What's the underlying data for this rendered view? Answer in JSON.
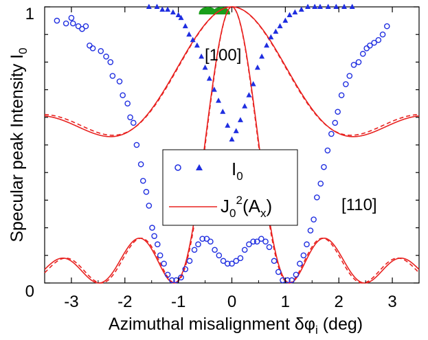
{
  "chart_data": {
    "type": "scatter",
    "xlabel_parts": {
      "main": "Azimuthal misalignment δφ",
      "sub": "i",
      "tail": " (deg)"
    },
    "ylabel_parts": {
      "main": "Specular peak Intensity I",
      "sub": "0"
    },
    "xlim": [
      -3.5,
      3.5
    ],
    "ylim": [
      0,
      1
    ],
    "x_ticks": [
      -3,
      -2,
      -1,
      0,
      1,
      2,
      3
    ],
    "x_tick_labels": [
      "-3",
      "-2",
      "-1",
      "0",
      "1",
      "2",
      "3"
    ],
    "y_tick_labels": {
      "bottom": "0",
      "top": "1"
    },
    "grid": false,
    "annotations": {
      "a100": "[100]",
      "a110": "[110]"
    },
    "legend": {
      "placement": "center",
      "markers_label": {
        "main": "I",
        "sub": "0"
      },
      "line_label": {
        "main": "J",
        "sub1": "0",
        "sup": "2",
        "mid": "(A",
        "sub2": "x",
        "tail": ")"
      }
    },
    "colors": {
      "markers": "#1f2ee0",
      "line": "#e8211f",
      "green_blob": "#1a9e1a"
    },
    "series_110_circles": [
      [
        -3.27,
        0.95
      ],
      [
        -3.1,
        0.94
      ],
      [
        -3.0,
        0.96
      ],
      [
        -2.97,
        0.94
      ],
      [
        -2.87,
        0.93
      ],
      [
        -2.8,
        0.92
      ],
      [
        -2.73,
        0.93
      ],
      [
        -2.66,
        0.86
      ],
      [
        -2.6,
        0.85
      ],
      [
        -2.45,
        0.84
      ],
      [
        -2.35,
        0.82
      ],
      [
        -2.27,
        0.8
      ],
      [
        -2.23,
        0.75
      ],
      [
        -2.1,
        0.73
      ],
      [
        -2.04,
        0.68
      ],
      [
        -1.95,
        0.65
      ],
      [
        -1.9,
        0.6
      ],
      [
        -1.84,
        0.58
      ],
      [
        -1.78,
        0.5
      ],
      [
        -1.7,
        0.43
      ],
      [
        -1.66,
        0.37
      ],
      [
        -1.6,
        0.33
      ],
      [
        -1.55,
        0.28
      ],
      [
        -1.49,
        0.2
      ],
      [
        -1.45,
        0.17
      ],
      [
        -1.39,
        0.14
      ],
      [
        -1.34,
        0.1
      ],
      [
        -1.27,
        0.07
      ],
      [
        -1.2,
        0.03
      ],
      [
        -1.12,
        0.01
      ],
      [
        -1.04,
        0.01
      ],
      [
        -0.95,
        0.02
      ],
      [
        -0.87,
        0.05
      ],
      [
        -0.79,
        0.08
      ],
      [
        -0.7,
        0.12
      ],
      [
        -0.63,
        0.14
      ],
      [
        -0.55,
        0.16
      ],
      [
        -0.47,
        0.16
      ],
      [
        -0.4,
        0.15
      ],
      [
        -0.32,
        0.12
      ],
      [
        -0.24,
        0.1
      ],
      [
        -0.16,
        0.08
      ],
      [
        -0.08,
        0.07
      ],
      [
        0.0,
        0.07
      ],
      [
        0.08,
        0.08
      ],
      [
        0.16,
        0.09
      ],
      [
        0.24,
        0.12
      ],
      [
        0.32,
        0.14
      ],
      [
        0.4,
        0.15
      ],
      [
        0.47,
        0.15
      ],
      [
        0.55,
        0.16
      ],
      [
        0.63,
        0.15
      ],
      [
        0.7,
        0.13
      ],
      [
        0.79,
        0.08
      ],
      [
        0.87,
        0.04
      ],
      [
        0.95,
        0.01
      ],
      [
        1.04,
        0.01
      ],
      [
        1.12,
        0.01
      ],
      [
        1.2,
        0.03
      ],
      [
        1.27,
        0.07
      ],
      [
        1.34,
        0.1
      ],
      [
        1.4,
        0.14
      ],
      [
        1.47,
        0.19
      ],
      [
        1.53,
        0.23
      ],
      [
        1.59,
        0.31
      ],
      [
        1.66,
        0.36
      ],
      [
        1.72,
        0.42
      ],
      [
        1.79,
        0.48
      ],
      [
        1.86,
        0.54
      ],
      [
        1.93,
        0.58
      ],
      [
        1.98,
        0.62
      ],
      [
        2.05,
        0.68
      ],
      [
        2.13,
        0.72
      ],
      [
        2.2,
        0.75
      ],
      [
        2.28,
        0.79
      ],
      [
        2.37,
        0.8
      ],
      [
        2.45,
        0.83
      ],
      [
        2.52,
        0.85
      ],
      [
        2.58,
        0.86
      ],
      [
        2.66,
        0.87
      ],
      [
        2.74,
        0.88
      ],
      [
        2.82,
        0.9
      ],
      [
        2.9,
        0.93
      ]
    ],
    "series_100_triangles": [
      [
        -1.55,
        1.0
      ],
      [
        -1.4,
        1.0
      ],
      [
        -1.3,
        0.99
      ],
      [
        -1.2,
        0.99
      ],
      [
        -1.1,
        0.98
      ],
      [
        -1.0,
        0.97
      ],
      [
        -0.95,
        0.96
      ],
      [
        -0.87,
        0.93
      ],
      [
        -0.8,
        0.9
      ],
      [
        -0.73,
        0.88
      ],
      [
        -0.65,
        0.86
      ],
      [
        -0.57,
        0.82
      ],
      [
        -0.5,
        0.78
      ],
      [
        -0.42,
        0.74
      ],
      [
        -0.33,
        0.7
      ],
      [
        -0.25,
        0.66
      ],
      [
        -0.17,
        0.62
      ],
      [
        -0.08,
        0.57
      ],
      [
        0.0,
        0.52
      ],
      [
        0.08,
        0.55
      ],
      [
        0.16,
        0.59
      ],
      [
        0.24,
        0.64
      ],
      [
        0.32,
        0.68
      ],
      [
        0.4,
        0.72
      ],
      [
        0.48,
        0.78
      ],
      [
        0.56,
        0.82
      ],
      [
        0.65,
        0.86
      ],
      [
        0.73,
        0.89
      ],
      [
        0.82,
        0.91
      ],
      [
        0.9,
        0.93
      ],
      [
        1.0,
        0.95
      ],
      [
        1.08,
        0.97
      ],
      [
        1.18,
        0.98
      ],
      [
        1.3,
        0.99
      ],
      [
        1.42,
        1.0
      ],
      [
        1.55,
        1.0
      ],
      [
        1.65,
        1.0
      ],
      [
        1.8,
        1.0
      ],
      [
        1.95,
        1.0
      ],
      [
        2.1,
        1.0
      ],
      [
        2.25,
        1.0
      ]
    ]
  }
}
